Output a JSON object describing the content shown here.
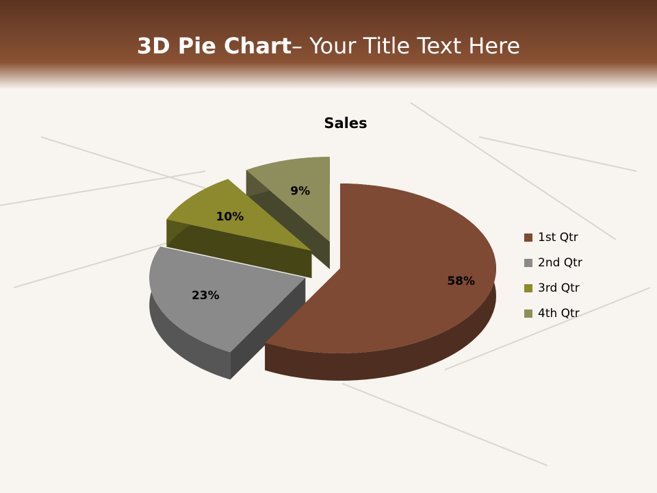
{
  "slide": {
    "title_bold": "3D Pie Chart",
    "title_rest": "– Your Title Text Here"
  },
  "chart_data": {
    "type": "pie",
    "title": "Sales",
    "categories": [
      "1st Qtr",
      "2nd Qtr",
      "3rd Qtr",
      "4th Qtr"
    ],
    "values": [
      58,
      23,
      10,
      9
    ],
    "value_labels": [
      "58%",
      "23%",
      "10%",
      "9%"
    ],
    "colors": [
      "#7e4a33",
      "#8a8a8a",
      "#8c8a2c",
      "#8e8e5c"
    ],
    "legend": "right"
  }
}
